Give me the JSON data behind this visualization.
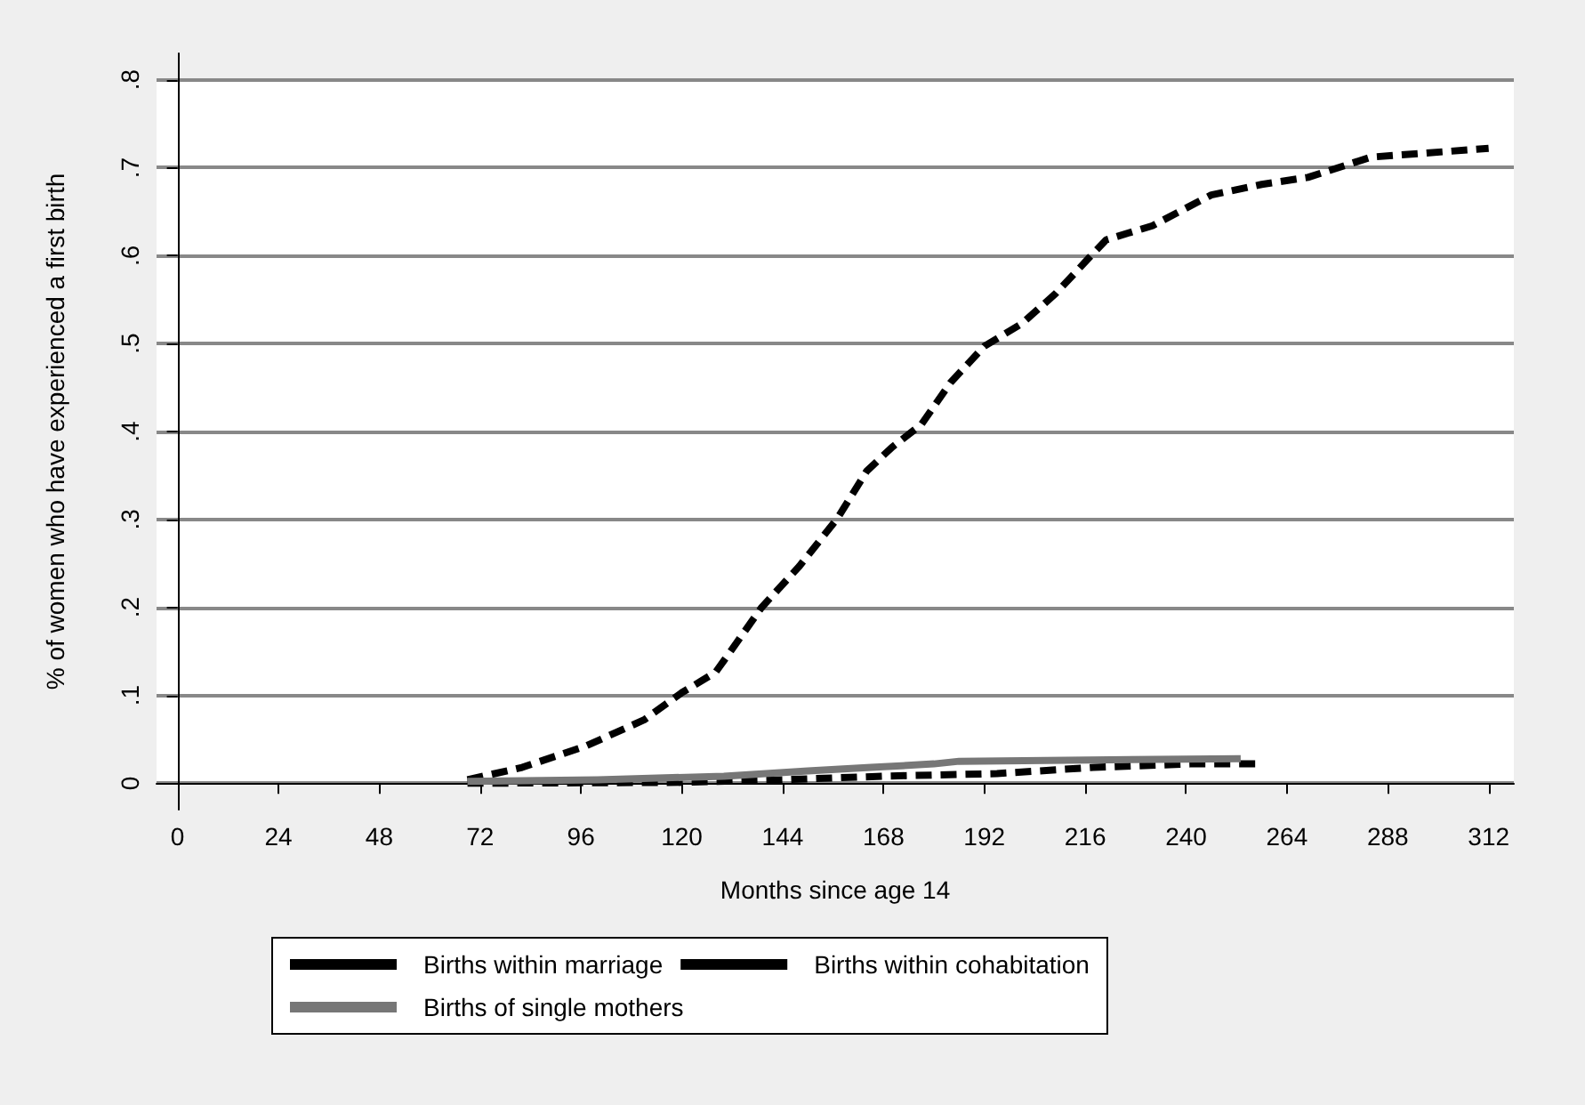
{
  "chart_data": {
    "type": "line",
    "xlabel": "Months since age 14",
    "ylabel": "% of women who have experienced a first birth",
    "xlim": [
      -5,
      318
    ],
    "xticks": [
      0,
      24,
      48,
      72,
      96,
      120,
      144,
      168,
      192,
      216,
      240,
      264,
      288,
      312
    ],
    "ylim": [
      -0.03,
      0.83
    ],
    "yticks": [
      0,
      {
        "value": 0.1,
        "label": ".1"
      },
      {
        "value": 0.2,
        "label": ".2"
      },
      {
        "value": 0.3,
        "label": ".3"
      },
      {
        "value": 0.4,
        "label": ".4"
      },
      {
        "value": 0.5,
        "label": ".5"
      },
      {
        "value": 0.6,
        "label": ".6"
      },
      {
        "value": 0.7,
        "label": ".7"
      },
      {
        "value": 0.8,
        "label": ".8"
      }
    ],
    "grid": "y",
    "legend": "bottom",
    "marker": "none",
    "series": [
      {
        "name": "Births within marriage",
        "color": "#000000",
        "line_style": "dashed",
        "x": [
          69,
          82,
          97,
          111,
          120,
          128,
          131,
          139,
          148,
          157,
          164,
          170,
          177,
          184,
          192,
          201,
          209,
          217,
          221,
          232,
          246,
          258,
          269,
          284,
          312
        ],
        "values": [
          0.004,
          0.018,
          0.042,
          0.072,
          0.103,
          0.126,
          0.146,
          0.2,
          0.247,
          0.301,
          0.355,
          0.382,
          0.408,
          0.456,
          0.497,
          0.523,
          0.557,
          0.598,
          0.618,
          0.634,
          0.669,
          0.681,
          0.689,
          0.712,
          0.722
        ]
      },
      {
        "name": "Births within cohabitation",
        "color": "#000000",
        "line_style": "dashed",
        "x": [
          69,
          120,
          144,
          168,
          195,
          218,
          241,
          258
        ],
        "values": [
          0,
          0.001,
          0.004,
          0.008,
          0.011,
          0.018,
          0.022,
          0.022
        ]
      },
      {
        "name": "Births of single mothers",
        "color": "#777777",
        "line_style": "solid",
        "x": [
          69,
          100,
          130,
          150,
          165,
          180,
          186,
          253
        ],
        "values": [
          0.002,
          0.004,
          0.008,
          0.014,
          0.018,
          0.022,
          0.025,
          0.028
        ]
      }
    ]
  }
}
